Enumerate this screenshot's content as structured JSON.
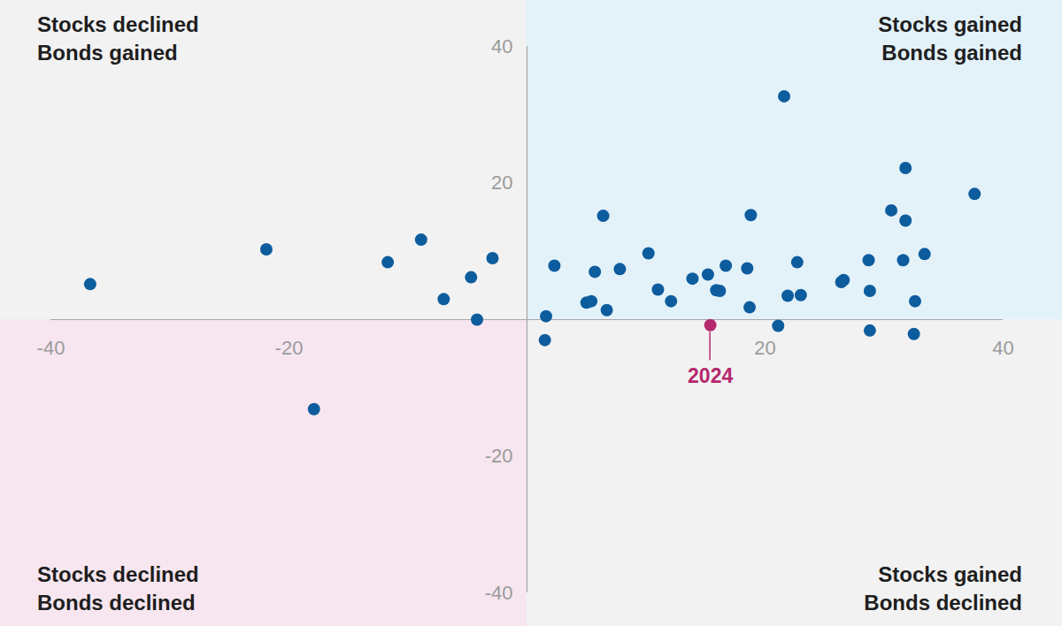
{
  "chart_data": {
    "type": "scatter",
    "quadrant_labels": [
      [
        "Stocks declined",
        "Bonds gained"
      ],
      [
        "Stocks gained",
        "Bonds gained"
      ],
      [
        "Stocks declined",
        "Bonds declined"
      ],
      [
        "Stocks gained",
        "Bonds declined"
      ]
    ],
    "x": [
      -36.7,
      -21.9,
      -17.9,
      -11.7,
      -8.9,
      -7.0,
      -4.7,
      -4.2,
      -2.9,
      1.6,
      1.5,
      2.3,
      5.0,
      5.4,
      5.7,
      6.4,
      6.7,
      7.8,
      10.2,
      11.0,
      12.1,
      13.9,
      15.2,
      15.9,
      16.2,
      16.7,
      18.5,
      18.7,
      18.8,
      21.1,
      21.6,
      21.9,
      22.7,
      23.0,
      26.4,
      26.6,
      28.7,
      28.8,
      28.8,
      30.6,
      31.6,
      31.8,
      31.8,
      32.5,
      32.6,
      33.4,
      37.6
    ],
    "values": [
      5.2,
      10.3,
      -13.1,
      8.4,
      11.7,
      3.0,
      6.2,
      0.0,
      9.0,
      0.5,
      -3.0,
      7.9,
      2.5,
      2.7,
      7.0,
      15.2,
      1.4,
      7.4,
      9.7,
      4.4,
      2.7,
      6.0,
      6.6,
      4.3,
      4.2,
      7.9,
      7.5,
      1.8,
      15.3,
      -0.9,
      32.7,
      3.5,
      8.4,
      3.6,
      5.5,
      5.8,
      8.7,
      4.2,
      -1.6,
      16.0,
      8.7,
      22.2,
      14.5,
      -2.1,
      2.7,
      9.6,
      18.4
    ],
    "color": "#0d5c9e",
    "highlight": {
      "label": "2024",
      "x": 15.4,
      "y": -0.8,
      "color": "#b5286f"
    },
    "xlim": [
      -40,
      40
    ],
    "ylim": [
      -40,
      40
    ],
    "xticks": [
      -40,
      -20,
      20,
      40
    ],
    "yticks": [
      -40,
      -20,
      20,
      40
    ],
    "grid": false
  }
}
